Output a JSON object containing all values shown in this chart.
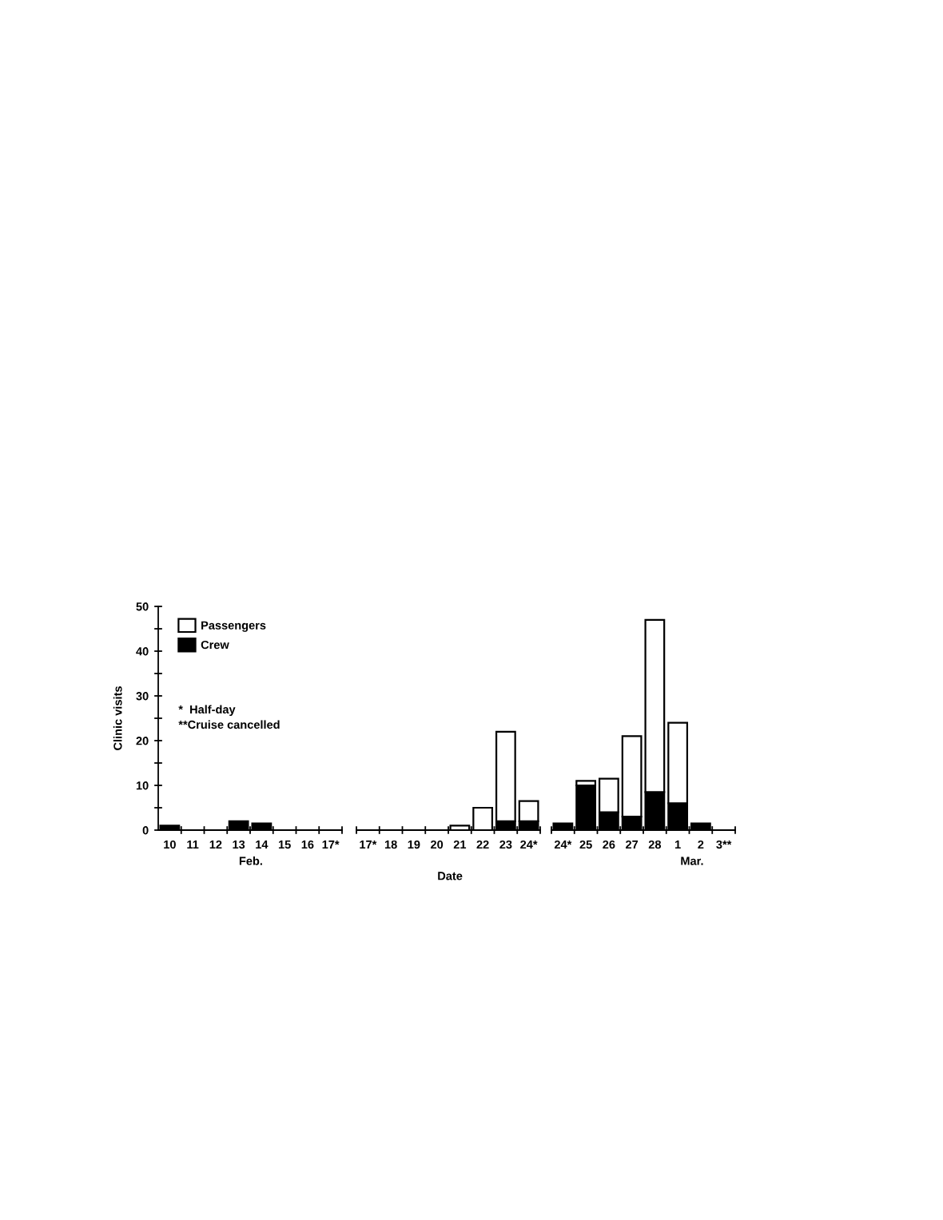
{
  "chart_data": [
    {
      "type": "bar",
      "stacked": true,
      "categories": [
        "10",
        "11",
        "12",
        "13",
        "14",
        "15",
        "16",
        "17*"
      ],
      "xlabel": "Feb.",
      "ylabel": "Clinic visits",
      "ylim": [
        0,
        50
      ],
      "yticks": [
        0,
        {
          "value": 5,
          "label": null
        },
        10,
        {
          "value": 15,
          "label": null
        },
        20,
        {
          "value": 25,
          "label": null
        },
        30,
        {
          "value": 35,
          "label": null
        },
        40,
        {
          "value": 45,
          "label": null
        },
        50
      ],
      "legend": "top left",
      "annotations": [
        "*  Half-day",
        "**Cruise cancelled"
      ],
      "series": [
        {
          "name": "Crew",
          "color": "#000000",
          "values": [
            1,
            0,
            0,
            2,
            1.5,
            0,
            0,
            0
          ]
        },
        {
          "name": "Passengers",
          "color": "#ffffff",
          "values": [
            0,
            0,
            0,
            0,
            0,
            0,
            0,
            0
          ]
        }
      ]
    },
    {
      "type": "bar",
      "stacked": true,
      "categories": [
        "17*",
        "18",
        "19",
        "20",
        "21",
        "22",
        "23",
        "24*"
      ],
      "xlabel": "Date",
      "ylim": [
        0,
        50
      ],
      "tick_labels": "x",
      "series": [
        {
          "color": "#000000",
          "values": [
            0,
            0,
            0,
            0,
            0,
            0,
            2,
            2
          ]
        },
        {
          "color": "#ffffff",
          "values": [
            0,
            0,
            0,
            0,
            1,
            5,
            20,
            4.5
          ]
        }
      ]
    },
    {
      "type": "bar",
      "stacked": true,
      "categories": [
        "24*",
        "25",
        "26",
        "27",
        "28",
        "1",
        "2",
        "3**"
      ],
      "xlabel": "Mar.",
      "ylim": [
        0,
        50
      ],
      "tick_labels": "x",
      "series": [
        {
          "color": "#000000",
          "values": [
            1.5,
            10,
            4,
            3,
            8.5,
            6,
            1.5,
            0
          ]
        },
        {
          "color": "#ffffff",
          "values": [
            0,
            1,
            7.5,
            18,
            38.5,
            18,
            0,
            0
          ]
        }
      ]
    }
  ]
}
